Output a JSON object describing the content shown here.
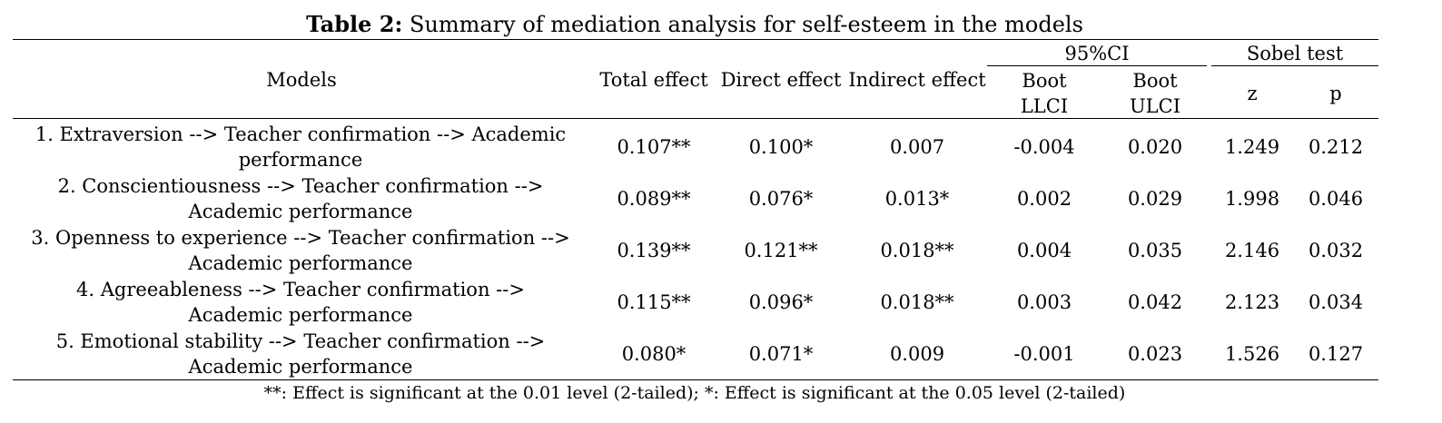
{
  "table": {
    "caption_label": "Table 2:",
    "caption_text": "Summary of mediation analysis for self-esteem in the models",
    "headers": {
      "models": "Models",
      "total_effect": "Total effect",
      "direct_effect": "Direct effect",
      "indirect_effect": "Indirect effect",
      "ci_group": "95%CI",
      "boot_llci": "Boot LLCI",
      "boot_ulci": "Boot ULCI",
      "sobel_group": "Sobel test",
      "z": "z",
      "p": "p"
    },
    "rows": [
      {
        "model": "1. Extraversion --> Teacher confirmation --> Academic performance",
        "total": "0.107**",
        "direct": "0.100*",
        "indirect": "0.007",
        "llci": "-0.004",
        "ulci": "0.020",
        "z": "1.249",
        "p": "0.212"
      },
      {
        "model": "2. Conscientiousness --> Teacher confirmation --> Academic performance",
        "total": "0.089**",
        "direct": "0.076*",
        "indirect": "0.013*",
        "llci": "0.002",
        "ulci": "0.029",
        "z": "1.998",
        "p": "0.046"
      },
      {
        "model": "3. Openness to experience --> Teacher confirmation --> Academic performance",
        "total": "0.139**",
        "direct": "0.121**",
        "indirect": "0.018**",
        "llci": "0.004",
        "ulci": "0.035",
        "z": "2.146",
        "p": "0.032"
      },
      {
        "model": "4. Agreeableness --> Teacher confirmation --> Academic performance",
        "total": "0.115**",
        "direct": "0.096*",
        "indirect": "0.018**",
        "llci": "0.003",
        "ulci": "0.042",
        "z": "2.123",
        "p": "0.034"
      },
      {
        "model": "5. Emotional stability --> Teacher confirmation --> Academic performance",
        "total": "0.080*",
        "direct": "0.071*",
        "indirect": "0.009",
        "llci": "-0.001",
        "ulci": "0.023",
        "z": "1.526",
        "p": "0.127"
      }
    ],
    "footnote": "**: Effect is significant at the 0.01 level (2-tailed); *: Effect is significant at the 0.05 level (2-tailed)"
  }
}
